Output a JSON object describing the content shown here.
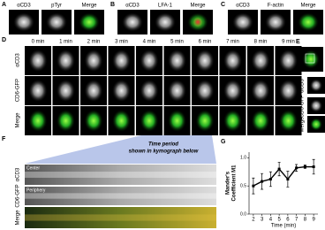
{
  "panels": {
    "A": {
      "label": "A",
      "columns": [
        "αCD3",
        "pTyr",
        "Merge"
      ]
    },
    "B": {
      "label": "B",
      "columns": [
        "αCD3",
        "LFA-1",
        "Merge"
      ]
    },
    "C": {
      "label": "C",
      "columns": [
        "αCD3",
        "F-actin",
        "Merge"
      ]
    },
    "D": {
      "label": "D",
      "times": [
        "0 min",
        "1 min",
        "2 min",
        "3 min",
        "4 min",
        "5 min",
        "6 min",
        "7 min",
        "8 min",
        "9 min"
      ],
      "rows": [
        "αCD3",
        "CD6-GFP",
        "Merge"
      ]
    },
    "E": {
      "label": "E",
      "rows": [
        "αCD3",
        "CD6-GFP",
        "Merge"
      ]
    },
    "F": {
      "label": "F",
      "callout": [
        "Time period",
        "shown in kymograph below"
      ],
      "center": "Center",
      "periphery": "Periphery",
      "rows": [
        "αCD3",
        "CD6-GFP",
        "Merge"
      ]
    }
  },
  "chart_data": {
    "type": "line",
    "panel_label": "G",
    "y_label": [
      "Mander's",
      "Coefficient M1"
    ],
    "x_label": "Time (min)",
    "x": [
      2,
      3,
      4,
      5,
      6,
      7,
      8,
      9
    ],
    "values": [
      0.5,
      0.58,
      0.62,
      0.8,
      0.62,
      0.82,
      0.84,
      0.84
    ],
    "errors": [
      0.14,
      0.14,
      0.13,
      0.12,
      0.14,
      0.06,
      0.03,
      0.13
    ],
    "color": "#000000",
    "xlim": [
      1.5,
      9.5
    ],
    "xticks": [
      2,
      3,
      4,
      5,
      6,
      7,
      8,
      9
    ],
    "ylim": [
      0,
      1.1
    ],
    "yticks": [
      {
        "value": 0,
        "label": "0.0"
      },
      {
        "value": 0.5,
        "label": "0.5"
      },
      {
        "value": 1,
        "label": "1.0"
      }
    ]
  }
}
